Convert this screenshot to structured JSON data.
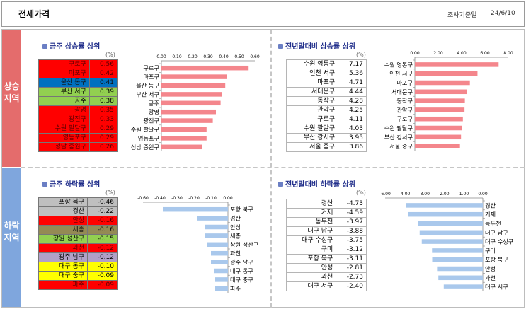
{
  "header": {
    "title": "전세가격",
    "survey_label": "조사기준일",
    "survey_date": "24/6/10"
  },
  "sidebar": {
    "rise_label": "상승지역",
    "fall_label": "하락지역"
  },
  "panels": {
    "week_rise": {
      "title": "금주 상승률 상위",
      "unit": "(%)"
    },
    "ytd_rise": {
      "title": "전년말대비 상승률 상위",
      "unit": "(%)"
    },
    "week_fall": {
      "title": "금주 하락률 상위",
      "unit": "(%)"
    },
    "ytd_fall": {
      "title": "전년말대비 하락률 상위",
      "unit": "(%)"
    }
  },
  "colors": {
    "red": "#ff0000",
    "blue": "#0070c0",
    "green": "#92d050",
    "gray": "#bfbfbf",
    "olive": "#948a54",
    "lightgreen": "#92d050",
    "lavender": "#b1a0c7",
    "yellow": "#ffff00",
    "rise_bar": "#f4868c",
    "fall_bar": "#a9c8ec"
  },
  "chart_data": [
    {
      "id": "week_rise",
      "type": "bar",
      "orientation": "horizontal",
      "categories": [
        "구로구",
        "마포구",
        "울산 동구",
        "부산 서구",
        "공주",
        "광명",
        "광진구",
        "수원 팔달구",
        "영등포구",
        "성남 중원구"
      ],
      "values": [
        0.56,
        0.42,
        0.41,
        0.39,
        0.38,
        0.35,
        0.33,
        0.29,
        0.29,
        0.26
      ],
      "row_colors": [
        "red",
        "red",
        "blue",
        "green",
        "green",
        "red",
        "red",
        "red",
        "red",
        "red"
      ],
      "xlim": [
        0,
        0.6
      ],
      "xticks": [
        "0.00",
        "0.10",
        "0.20",
        "0.30",
        "0.40",
        "0.50",
        "0.60"
      ]
    },
    {
      "id": "ytd_rise",
      "type": "bar",
      "orientation": "horizontal",
      "categories": [
        "수원 영통구",
        "인천 서구",
        "마포구",
        "서대문구",
        "동작구",
        "관악구",
        "구로구",
        "수원 팔달구",
        "부산 강서구",
        "서울 중구"
      ],
      "values": [
        7.17,
        5.36,
        4.71,
        4.44,
        4.28,
        4.25,
        4.11,
        4.03,
        3.95,
        3.86
      ],
      "xlim": [
        0,
        8
      ],
      "xticks": [
        "0.00",
        "2.00",
        "4.00",
        "6.00",
        "8.00"
      ]
    },
    {
      "id": "week_fall",
      "type": "bar",
      "orientation": "horizontal",
      "categories": [
        "포항 북구",
        "경산",
        "안성",
        "세종",
        "창원 성산구",
        "과천",
        "광주 남구",
        "대구 동구",
        "대구 중구",
        "파주"
      ],
      "values": [
        -0.46,
        -0.22,
        -0.16,
        -0.16,
        -0.15,
        -0.12,
        -0.12,
        -0.1,
        -0.09,
        -0.09
      ],
      "row_colors": [
        "gray",
        "gray",
        "red",
        "olive",
        "lightgreen",
        "red",
        "lavender",
        "yellow",
        "yellow",
        "red"
      ],
      "xlim": [
        -0.6,
        0
      ],
      "xticks": [
        "-0.60",
        "-0.40",
        "-0.30",
        "-0.20",
        "-0.10",
        "0.00"
      ]
    },
    {
      "id": "ytd_fall",
      "type": "bar",
      "orientation": "horizontal",
      "categories": [
        "경산",
        "거제",
        "동두천",
        "대구 남구",
        "대구 수성구",
        "구미",
        "포항 북구",
        "안성",
        "과천",
        "대구 서구"
      ],
      "values": [
        -4.73,
        -4.59,
        -3.97,
        -3.88,
        -3.75,
        -3.12,
        -3.11,
        -2.81,
        -2.73,
        -2.4
      ],
      "xlim": [
        -6,
        0
      ],
      "xticks": [
        "-6.00",
        "-4.00",
        "-3.00",
        "-2.00",
        "-1.00",
        "0.00"
      ]
    }
  ]
}
